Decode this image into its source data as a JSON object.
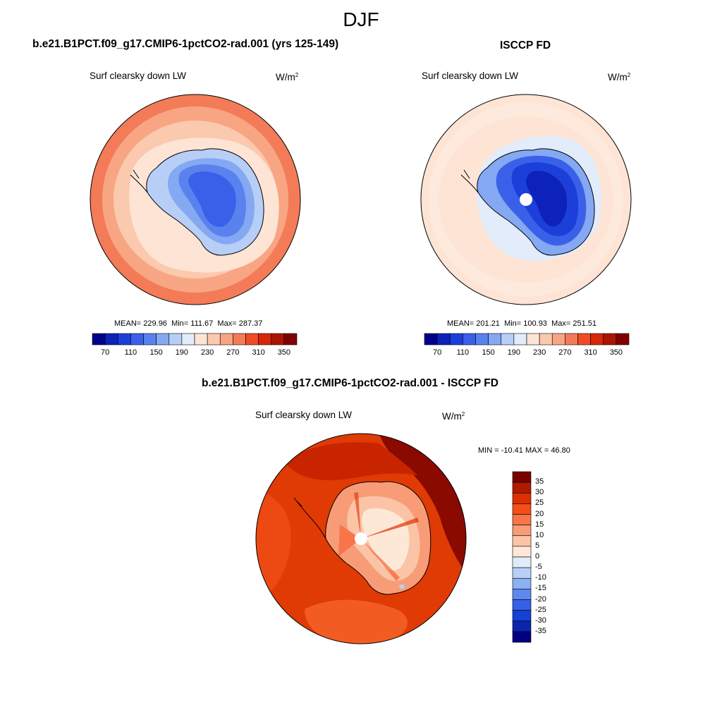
{
  "figure": {
    "season": "DJF"
  },
  "panel_model": {
    "case": "b.e21.B1PCT.f09_g17.CMIP6-1pctCO2-rad.001 (yrs 125-149)",
    "variable": "Surf clearsky down LW",
    "units_base": "W/m",
    "units_exp": "2",
    "stats": {
      "mean_label": "MEAN=",
      "mean": "229.96",
      "min_label": "Min=",
      "min": "111.67",
      "max_label": "Max=",
      "max": "287.37"
    },
    "colorbar_ticks": [
      "70",
      "110",
      "150",
      "190",
      "230",
      "270",
      "310",
      "350"
    ]
  },
  "panel_obs": {
    "case": "ISCCP FD",
    "variable": "Surf clearsky down LW",
    "units_base": "W/m",
    "units_exp": "2",
    "stats": {
      "mean_label": "MEAN=",
      "mean": "201.21",
      "min_label": "Min=",
      "min": "100.93",
      "max_label": "Max=",
      "max": "251.51"
    },
    "colorbar_ticks": [
      "70",
      "110",
      "150",
      "190",
      "230",
      "270",
      "310",
      "350"
    ]
  },
  "panel_diff": {
    "case": "b.e21.B1PCT.f09_g17.CMIP6-1pctCO2-rad.001 - ISCCP FD",
    "variable": "Surf clearsky down LW",
    "units_base": "W/m",
    "units_exp": "2",
    "minmax_text": "MIN = -10.41 MAX =  46.80",
    "colorbar_ticks": [
      "35",
      "30",
      "25",
      "20",
      "15",
      "10",
      "5",
      "0",
      "-5",
      "-10",
      "-15",
      "-20",
      "-25",
      "-30",
      "-35"
    ]
  },
  "colors": {
    "abs_scale": [
      "#00008b",
      "#0d22b8",
      "#1c3fd9",
      "#3a60ea",
      "#5a82ef",
      "#85a8f3",
      "#b7cff7",
      "#e3ecfb",
      "#fde4d4",
      "#fbc9ad",
      "#f8a583",
      "#f47b58",
      "#ee4c25",
      "#d62708",
      "#ab1503",
      "#800000"
    ],
    "diff_scale": [
      "#7a0000",
      "#b21a00",
      "#dd3000",
      "#f44e1a",
      "#f77549",
      "#f89c78",
      "#fbc4a6",
      "#fde8d8",
      "#e1ecfa",
      "#b8d0f6",
      "#8cb1f1",
      "#5d88ed",
      "#3461e6",
      "#1541d4",
      "#0b24ae",
      "#000080"
    ],
    "land_outline": "#000000",
    "pole_hole": "#ffffff"
  },
  "chart_data": [
    {
      "type": "map",
      "projection": "south polar stereographic",
      "title": "Surf clearsky down LW",
      "units": "W/m2",
      "field_mean": 229.96,
      "field_min": 111.67,
      "field_max": 287.37,
      "contour_levels": [
        70,
        90,
        110,
        130,
        150,
        170,
        190,
        210,
        230,
        250,
        270,
        290,
        310,
        330,
        350
      ],
      "colorbar_labels": [
        70,
        110,
        150,
        190,
        230,
        270,
        310,
        350
      ]
    },
    {
      "type": "map",
      "projection": "south polar stereographic",
      "title": "Surf clearsky down LW",
      "units": "W/m2",
      "field_mean": 201.21,
      "field_min": 100.93,
      "field_max": 251.51,
      "contour_levels": [
        70,
        90,
        110,
        130,
        150,
        170,
        190,
        210,
        230,
        250,
        270,
        290,
        310,
        330,
        350
      ],
      "colorbar_labels": [
        70,
        110,
        150,
        190,
        230,
        270,
        310,
        350
      ]
    },
    {
      "type": "map",
      "projection": "south polar stereographic",
      "title": "Surf clearsky down LW",
      "units": "W/m2",
      "field_min": -10.41,
      "field_max": 46.8,
      "contour_levels": [
        -35,
        -30,
        -25,
        -20,
        -15,
        -10,
        -5,
        0,
        5,
        10,
        15,
        20,
        25,
        30,
        35
      ],
      "colorbar_labels": [
        35,
        30,
        25,
        20,
        15,
        10,
        5,
        0,
        -5,
        -10,
        -15,
        -20,
        -25,
        -30,
        -35
      ]
    }
  ]
}
